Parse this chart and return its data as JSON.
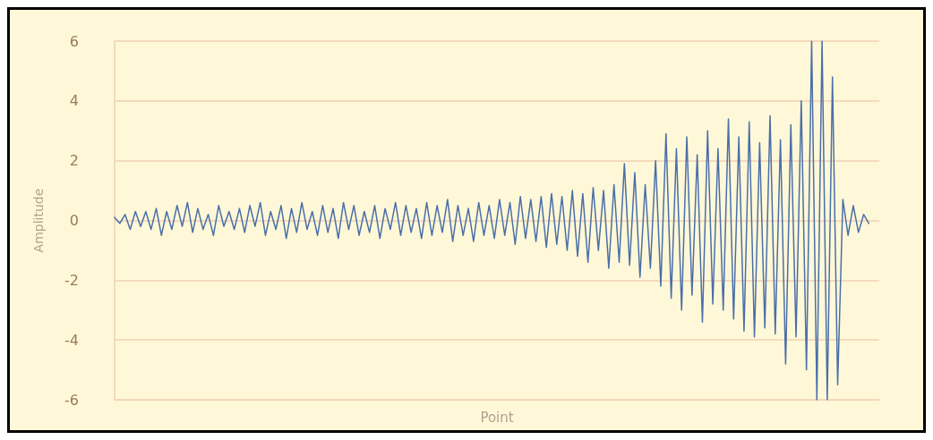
{
  "chart_data": {
    "type": "line",
    "xlabel": "Point",
    "ylabel": "Amplitude",
    "ylim": [
      -6,
      6
    ],
    "yticks": [
      -6,
      -4,
      -2,
      0,
      2,
      4,
      6
    ],
    "grid": "y",
    "marker": "none",
    "line_style": "solid",
    "categories": [
      null,
      null,
      null,
      null,
      null,
      null,
      null,
      null,
      null,
      null,
      null,
      null,
      null,
      null,
      null,
      null,
      null,
      null,
      null,
      null,
      null,
      null,
      null,
      null,
      null,
      null,
      null,
      null,
      null,
      null,
      null,
      null,
      null,
      null,
      null,
      null,
      null,
      null,
      null,
      null,
      null,
      null,
      null,
      null,
      null,
      null,
      null,
      null,
      null,
      null,
      null,
      null,
      null,
      null,
      null,
      null,
      null,
      null,
      null,
      null,
      null,
      null,
      null,
      null,
      null,
      null,
      null,
      null,
      null,
      null,
      null,
      null,
      null,
      null,
      null,
      null,
      null,
      null,
      null,
      null,
      null,
      null,
      null,
      null,
      null,
      null,
      null,
      null,
      null,
      null,
      null,
      null,
      null,
      null,
      null,
      null,
      null,
      null,
      null,
      null,
      null,
      null,
      null,
      null,
      null,
      null,
      null,
      null,
      null,
      null,
      null,
      null,
      null,
      null,
      null,
      null,
      null,
      null,
      null,
      null,
      null,
      null,
      null,
      null,
      null,
      null,
      null,
      null,
      null,
      null,
      null,
      null,
      null,
      null,
      null,
      null,
      null,
      null,
      null,
      null,
      null,
      null,
      null,
      null,
      null,
      null,
      null,
      null
    ],
    "series": [
      {
        "color": "#4a6fa8",
        "values": [
          0.1,
          -0.1,
          0.2,
          -0.3,
          0.3,
          -0.2,
          0.3,
          -0.3,
          0.4,
          -0.5,
          0.3,
          -0.3,
          0.5,
          -0.2,
          0.6,
          -0.4,
          0.4,
          -0.3,
          0.2,
          -0.5,
          0.5,
          -0.2,
          0.3,
          -0.3,
          0.4,
          -0.4,
          0.5,
          -0.2,
          0.6,
          -0.5,
          0.3,
          -0.3,
          0.5,
          -0.6,
          0.4,
          -0.4,
          0.6,
          -0.3,
          0.3,
          -0.5,
          0.5,
          -0.4,
          0.4,
          -0.6,
          0.6,
          -0.3,
          0.5,
          -0.5,
          0.3,
          -0.4,
          0.5,
          -0.6,
          0.4,
          -0.3,
          0.6,
          -0.5,
          0.5,
          -0.4,
          0.4,
          -0.6,
          0.6,
          -0.5,
          0.5,
          -0.4,
          0.7,
          -0.7,
          0.5,
          -0.5,
          0.4,
          -0.7,
          0.6,
          -0.5,
          0.5,
          -0.6,
          0.7,
          -0.5,
          0.6,
          -0.8,
          0.8,
          -0.6,
          0.7,
          -0.7,
          0.8,
          -0.9,
          0.9,
          -0.8,
          0.8,
          -1.0,
          1.0,
          -1.2,
          0.9,
          -1.4,
          1.1,
          -1.0,
          1.0,
          -1.6,
          1.2,
          -1.4,
          1.9,
          -1.5,
          1.6,
          -1.9,
          1.2,
          -1.6,
          2.0,
          -2.2,
          2.9,
          -2.6,
          2.4,
          -3.0,
          2.8,
          -2.5,
          2.2,
          -3.4,
          3.0,
          -2.8,
          2.4,
          -3.0,
          3.4,
          -3.3,
          2.8,
          -3.7,
          3.3,
          -3.9,
          2.6,
          -3.6,
          3.5,
          -3.8,
          2.7,
          -4.8,
          3.2,
          -3.9,
          4.0,
          -5.0,
          6,
          -6,
          6,
          -6,
          4.8,
          -5.5,
          0.7,
          -0.5,
          0.5,
          -0.4,
          0.2,
          -0.1,
          null,
          null
        ]
      }
    ]
  }
}
